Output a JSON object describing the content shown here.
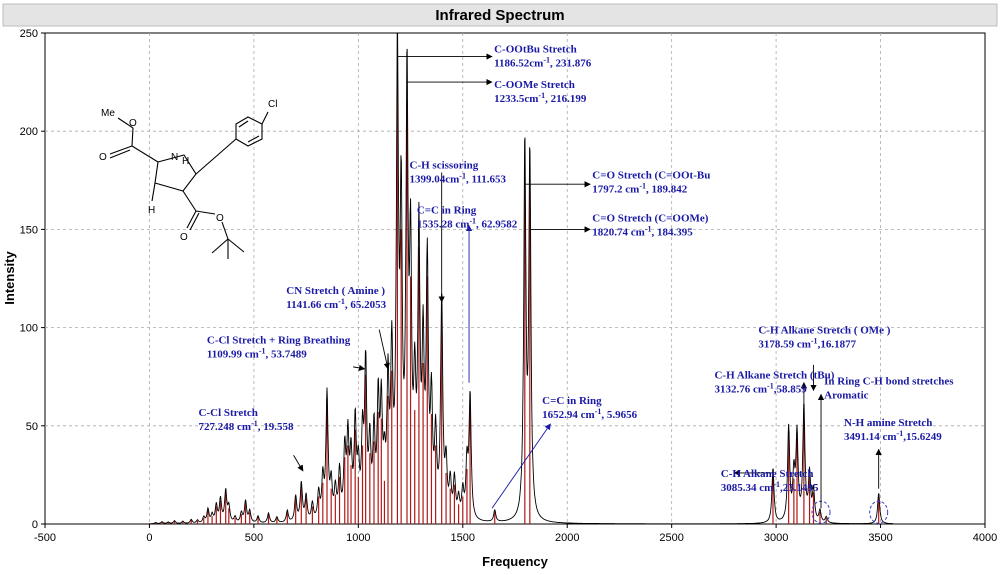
{
  "chart_data": {
    "type": "line",
    "title": "Infrared Spectrum",
    "xlabel": "Frequency",
    "ylabel": "Intensity",
    "xlim": [
      -500,
      4000
    ],
    "ylim": [
      0,
      250
    ],
    "xticks": [
      -500,
      0,
      500,
      1000,
      1500,
      2000,
      2500,
      3000,
      3500,
      4000
    ],
    "yticks": [
      0,
      50,
      100,
      150,
      200,
      250
    ],
    "grid": true,
    "stick_color": "#b01818",
    "line_color": "#000000",
    "annotation_color": "#1a1aa6",
    "peaks": [
      {
        "x": 30,
        "y": 0.6
      },
      {
        "x": 60,
        "y": 1.0
      },
      {
        "x": 90,
        "y": 0.8
      },
      {
        "x": 120,
        "y": 1.5
      },
      {
        "x": 160,
        "y": 1.2
      },
      {
        "x": 200,
        "y": 2.0
      },
      {
        "x": 230,
        "y": 1.6
      },
      {
        "x": 260,
        "y": 3.0
      },
      {
        "x": 280,
        "y": 7.0
      },
      {
        "x": 300,
        "y": 4.0
      },
      {
        "x": 320,
        "y": 9.0
      },
      {
        "x": 340,
        "y": 12.0
      },
      {
        "x": 365,
        "y": 16.0
      },
      {
        "x": 380,
        "y": 8.0
      },
      {
        "x": 410,
        "y": 3.0
      },
      {
        "x": 440,
        "y": 5.0
      },
      {
        "x": 460,
        "y": 11.0
      },
      {
        "x": 480,
        "y": 6.0
      },
      {
        "x": 520,
        "y": 3.5
      },
      {
        "x": 570,
        "y": 5.0
      },
      {
        "x": 610,
        "y": 3.0
      },
      {
        "x": 660,
        "y": 6.0
      },
      {
        "x": 700,
        "y": 13.0
      },
      {
        "x": 727,
        "y": 19.6
      },
      {
        "x": 750,
        "y": 13.0
      },
      {
        "x": 780,
        "y": 9.0
      },
      {
        "x": 810,
        "y": 14.0
      },
      {
        "x": 830,
        "y": 21.0
      },
      {
        "x": 850,
        "y": 64.0
      },
      {
        "x": 870,
        "y": 18.0
      },
      {
        "x": 890,
        "y": 15.0
      },
      {
        "x": 910,
        "y": 24.0
      },
      {
        "x": 935,
        "y": 34.0
      },
      {
        "x": 950,
        "y": 40.0
      },
      {
        "x": 965,
        "y": 30.0
      },
      {
        "x": 985,
        "y": 48.0
      },
      {
        "x": 1000,
        "y": 24.0
      },
      {
        "x": 1020,
        "y": 40.0
      },
      {
        "x": 1035,
        "y": 76.0
      },
      {
        "x": 1055,
        "y": 36.0
      },
      {
        "x": 1075,
        "y": 42.0
      },
      {
        "x": 1095,
        "y": 57.0
      },
      {
        "x": 1110,
        "y": 53.7
      },
      {
        "x": 1125,
        "y": 22.0
      },
      {
        "x": 1142,
        "y": 65.2
      },
      {
        "x": 1160,
        "y": 78.0
      },
      {
        "x": 1187,
        "y": 231.9
      },
      {
        "x": 1205,
        "y": 150.0
      },
      {
        "x": 1233,
        "y": 216.2
      },
      {
        "x": 1250,
        "y": 126.0
      },
      {
        "x": 1270,
        "y": 58.0
      },
      {
        "x": 1290,
        "y": 141.0
      },
      {
        "x": 1310,
        "y": 82.0
      },
      {
        "x": 1330,
        "y": 126.0
      },
      {
        "x": 1350,
        "y": 56.0
      },
      {
        "x": 1370,
        "y": 40.0
      },
      {
        "x": 1399,
        "y": 111.7
      },
      {
        "x": 1420,
        "y": 26.0
      },
      {
        "x": 1440,
        "y": 18.0
      },
      {
        "x": 1460,
        "y": 20.0
      },
      {
        "x": 1480,
        "y": 10.0
      },
      {
        "x": 1500,
        "y": 14.0
      },
      {
        "x": 1520,
        "y": 28.0
      },
      {
        "x": 1535,
        "y": 63.0
      },
      {
        "x": 1653,
        "y": 6.0
      },
      {
        "x": 1797,
        "y": 189.8
      },
      {
        "x": 1821,
        "y": 184.4
      },
      {
        "x": 2985,
        "y": 28.0
      },
      {
        "x": 3060,
        "y": 48.0
      },
      {
        "x": 3085,
        "y": 23.1
      },
      {
        "x": 3100,
        "y": 44.0
      },
      {
        "x": 3133,
        "y": 58.9
      },
      {
        "x": 3160,
        "y": 24.0
      },
      {
        "x": 3179,
        "y": 16.2
      },
      {
        "x": 3210,
        "y": 6.0
      },
      {
        "x": 3240,
        "y": 3.0
      },
      {
        "x": 3491,
        "y": 15.6
      }
    ],
    "annotations": [
      {
        "lines": [
          "C-OOtBu Stretch",
          "1186.52cm^-1, 231.876"
        ],
        "tx": 1650,
        "ty": 240,
        "ax1": 1187,
        "ay1": 238,
        "ax2": 1640,
        "ay2": 238
      },
      {
        "lines": [
          "C-OOMe Stretch",
          "1233.5cm^-1, 216.199"
        ],
        "tx": 1650,
        "ty": 222,
        "ax1": 1233,
        "ay1": 225,
        "ax2": 1640,
        "ay2": 225
      },
      {
        "lines": [
          "C-H  scissoring",
          "1399.04cm^-1, 111.653"
        ],
        "tx": 1245,
        "ty": 181,
        "ax1": 1399,
        "ay1": 179,
        "ax2": 1399,
        "ay2": 113
      },
      {
        "lines": [
          "C=O Stretch (C=OOt-Bu",
          "1797.2 cm^-1, 189.842"
        ],
        "tx": 2120,
        "ty": 176,
        "ax1": 1797,
        "ay1": 173,
        "ax2": 2110,
        "ay2": 173
      },
      {
        "lines": [
          "C=C in Ring",
          "1535.28 cm^-1, 62.9582"
        ],
        "tx": 1280,
        "ty": 158,
        "ax1": 1530,
        "ay1": 72,
        "ax2": 1530,
        "ay2": 152
      },
      {
        "lines": [
          "C=O Stretch (C=OOMe)",
          "1820.74 cm^-1, 184.395"
        ],
        "tx": 2120,
        "ty": 154,
        "ax1": 1821,
        "ay1": 150,
        "ax2": 2110,
        "ay2": 150
      },
      {
        "lines": [
          "CN Stretch ( Amine )",
          "1141.66 cm^-1, 65.2053"
        ],
        "tx": 655,
        "ty": 117,
        "ax1": 1100,
        "ay1": 99,
        "ax2": 1142,
        "ay2": 79
      },
      {
        "lines": [
          "C-Cl Stretch + Ring Breathing",
          "1109.99 cm^-1, 53.7489"
        ],
        "tx": 275,
        "ty": 92,
        "ax1": 975,
        "ay1": 80,
        "ax2": 1030,
        "ay2": 79
      },
      {
        "lines": [
          "C-H Alkane Stretch ( OMe )",
          "3178.59 cm^-1,16.1877"
        ],
        "tx": 2915,
        "ty": 97,
        "ax1": 3179,
        "ay1": 81,
        "ax2": 3179,
        "ay2": 68
      },
      {
        "lines": [
          "C-H Alkane Stretch (tBu)",
          "3132.76 cm^-1,58.859"
        ],
        "tx": 2705,
        "ty": 74,
        "ax1": 3133,
        "ay1": 61,
        "ax2": 3133,
        "ay2": 72
      },
      {
        "lines": [
          "In Ring C-H bond stretches",
          "Aromatic"
        ],
        "tx": 3230,
        "ty": 71,
        "ax1": 3215,
        "ay1": 8,
        "ax2": 3215,
        "ay2": 66
      },
      {
        "lines": [
          "N-H amine Stretch",
          "3491.14 cm^-1,15.6249"
        ],
        "tx": 3325,
        "ty": 50,
        "ax1": 3491,
        "ay1": 18,
        "ax2": 3491,
        "ay2": 38
      },
      {
        "lines": [
          "C-Cl Stretch",
          "727.248 cm^-1, 19.558"
        ],
        "tx": 235,
        "ty": 55,
        "ax1": 690,
        "ay1": 35,
        "ax2": 735,
        "ay2": 27
      },
      {
        "lines": [
          "C=C in Ring",
          "1652.94 cm^-1, 5.9656"
        ],
        "tx": 1880,
        "ty": 61,
        "ax1": 1640,
        "ay1": 8,
        "ax2": 1920,
        "ay2": 51
      },
      {
        "lines": [
          "C-H Alkane Stretch",
          "3085.34 cm^-1,23.1495"
        ],
        "tx": 2735,
        "ty": 24,
        "ax1": 2985,
        "ay1": 26,
        "ax2": 2800,
        "ay2": 26
      }
    ],
    "circled_peaks": [
      3215,
      3491
    ]
  },
  "molecule": {
    "labels": [
      "Cl",
      "Me",
      "O",
      "O",
      "N",
      "H",
      "H",
      "O",
      "O"
    ]
  }
}
